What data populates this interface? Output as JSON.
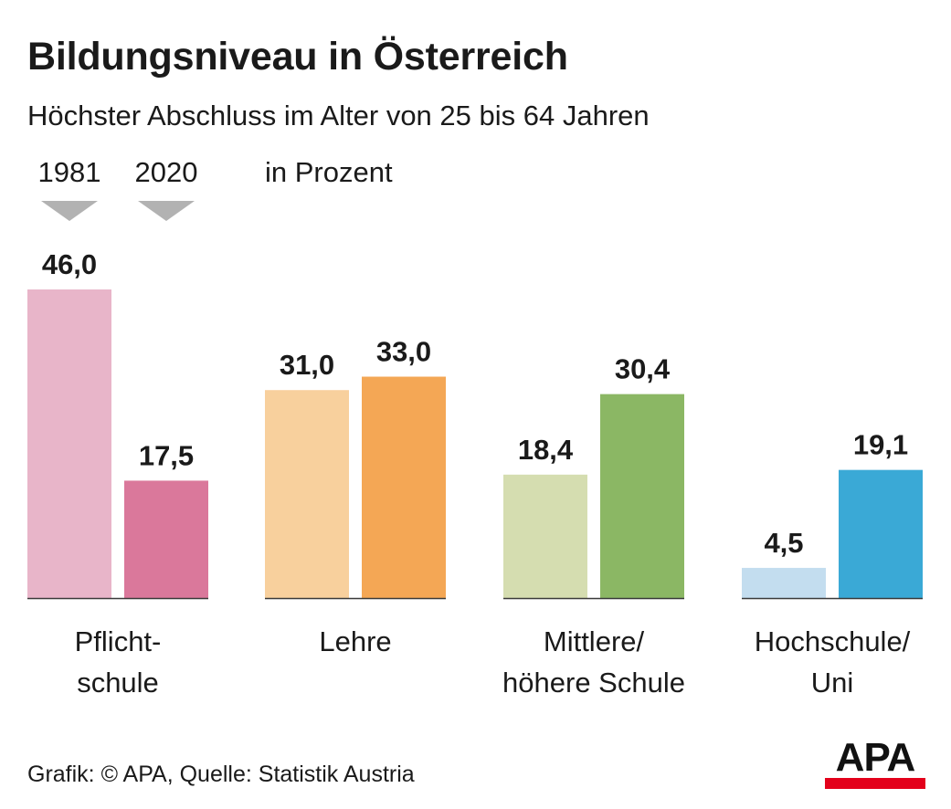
{
  "title": "Bildungsniveau in Österreich",
  "subtitle": "Höchster Abschluss im Alter von 25 bis 64 Jahren",
  "unit_label": "in Prozent",
  "source": "Grafik: © APA, Quelle: Statistik Austria",
  "logo_text": "APA",
  "colors": {
    "brand_red": "#e3001b",
    "legend_arrow": "#b2b2b2"
  },
  "chart_data": {
    "type": "bar",
    "legend_position": "top-left",
    "grid": false,
    "ylim": [
      0,
      46
    ],
    "series": [
      {
        "name": "1981",
        "values": [
          46.0,
          31.0,
          18.4,
          4.5
        ],
        "value_labels": [
          "46,0",
          "31,0",
          "18,4",
          "4,5"
        ]
      },
      {
        "name": "2020",
        "values": [
          17.5,
          33.0,
          30.4,
          19.1
        ],
        "value_labels": [
          "17,5",
          "33,0",
          "30,4",
          "19,1"
        ]
      }
    ],
    "categories": [
      {
        "label_lines": [
          "Pflicht-",
          "schule"
        ],
        "colors": [
          "#e8b5c9",
          "#da789b"
        ]
      },
      {
        "label_lines": [
          "Lehre"
        ],
        "colors": [
          "#f8d09d",
          "#f4a755"
        ]
      },
      {
        "label_lines": [
          "Mittlere/",
          "höhere Schule"
        ],
        "colors": [
          "#d5ddb0",
          "#8bb764"
        ]
      },
      {
        "label_lines": [
          "Hochschule/",
          "Uni"
        ],
        "colors": [
          "#c3ddef",
          "#3aa9d6"
        ]
      }
    ]
  }
}
